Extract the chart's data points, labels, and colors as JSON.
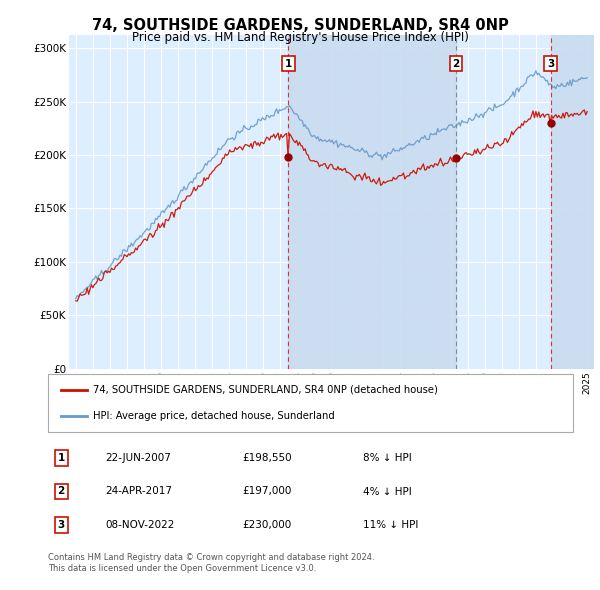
{
  "title": "74, SOUTHSIDE GARDENS, SUNDERLAND, SR4 0NP",
  "subtitle": "Price paid vs. HM Land Registry's House Price Index (HPI)",
  "ylabel_ticks": [
    "£0",
    "£50K",
    "£100K",
    "£150K",
    "£200K",
    "£250K",
    "£300K"
  ],
  "ytick_values": [
    0,
    50000,
    100000,
    150000,
    200000,
    250000,
    300000
  ],
  "ylim": [
    0,
    312000
  ],
  "xlim_start": 1994.6,
  "xlim_end": 2025.4,
  "background_color": "#ffffff",
  "plot_bg_color": "#ddeeff",
  "grid_color": "#ffffff",
  "hpi_line_color": "#6699cc",
  "price_line_color": "#cc1100",
  "sale_marker_color": "#990000",
  "dashed_line_color_red": "#dd3333",
  "dashed_line_color_grey": "#888888",
  "transactions": [
    {
      "num": 1,
      "date": "22-JUN-2007",
      "price": 198550,
      "year": 2007.47,
      "pct": "8%",
      "dir": "↓",
      "dash_color": "#dd3333"
    },
    {
      "num": 2,
      "date": "24-APR-2017",
      "price": 197000,
      "year": 2017.31,
      "pct": "4%",
      "dir": "↓",
      "dash_color": "#888888"
    },
    {
      "num": 3,
      "date": "08-NOV-2022",
      "price": 230000,
      "year": 2022.85,
      "pct": "11%",
      "dir": "↓",
      "dash_color": "#dd3333"
    }
  ],
  "shade_regions": [
    {
      "x_start": 2007.47,
      "x_end": 2017.31
    },
    {
      "x_start": 2022.85,
      "x_end": 2025.4
    }
  ],
  "legend_entries": [
    "74, SOUTHSIDE GARDENS, SUNDERLAND, SR4 0NP (detached house)",
    "HPI: Average price, detached house, Sunderland"
  ],
  "footer_lines": [
    "Contains HM Land Registry data © Crown copyright and database right 2024.",
    "This data is licensed under the Open Government Licence v3.0."
  ]
}
